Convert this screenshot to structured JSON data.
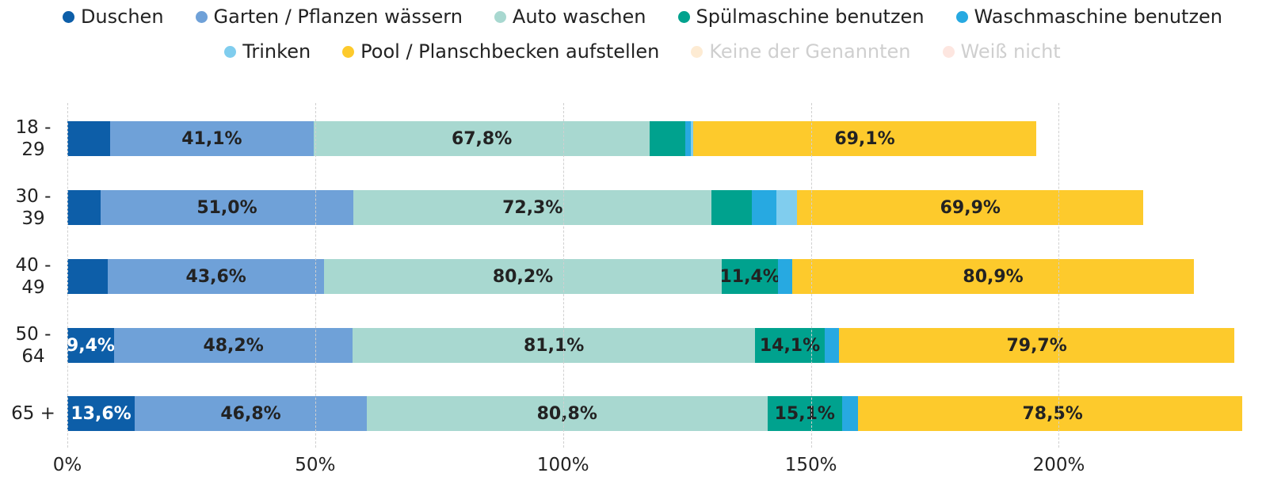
{
  "chart_data": {
    "type": "bar",
    "orientation": "horizontal",
    "stacked": true,
    "categories": [
      "18 - 29",
      "30 - 39",
      "40 - 49",
      "50 - 64",
      "65 +"
    ],
    "series": [
      {
        "name": "Duschen",
        "color": "#0d5ea8",
        "values": [
          8.6,
          6.7,
          8.2,
          9.4,
          13.6
        ],
        "value_labels": [
          null,
          null,
          null,
          "9,4%",
          "13,6%"
        ]
      },
      {
        "name": "Garten / Pflanzen wässern",
        "color": "#6fa1d8",
        "values": [
          41.1,
          51.0,
          43.6,
          48.2,
          46.8
        ],
        "value_labels": [
          "41,1%",
          "51,0%",
          "43,6%",
          "48,2%",
          "46,8%"
        ]
      },
      {
        "name": "Auto waschen",
        "color": "#a8d8d0",
        "values": [
          67.8,
          72.3,
          80.2,
          81.1,
          80.8
        ],
        "value_labels": [
          "67,8%",
          "72,3%",
          "80,2%",
          "81,1%",
          "80,8%"
        ]
      },
      {
        "name": "Spülmaschine benutzen",
        "color": "#00a28e",
        "values": [
          7.2,
          8.0,
          11.4,
          14.1,
          15.1
        ],
        "value_labels": [
          null,
          null,
          "11,4%",
          "14,1%",
          "15,1%"
        ]
      },
      {
        "name": "Waschmaschine benutzen",
        "color": "#27a9e1",
        "values": [
          1.0,
          5.0,
          2.9,
          2.9,
          3.2
        ],
        "value_labels": [
          null,
          null,
          null,
          null,
          null
        ]
      },
      {
        "name": "Trinken",
        "color": "#80cdee",
        "values": [
          0.6,
          4.2,
          null,
          null,
          null
        ],
        "value_labels": [
          null,
          null,
          null,
          null,
          null
        ]
      },
      {
        "name": "Pool / Planschbecken aufstellen",
        "color": "#fdca2c",
        "values": [
          69.1,
          69.9,
          80.9,
          79.7,
          78.5
        ],
        "value_labels": [
          "69,1%",
          "69,9%",
          "80,9%",
          "79,7%",
          "78,5%"
        ]
      },
      {
        "name": "Keine der Genannten",
        "color": "#fdebd3",
        "hidden": true,
        "values": [
          null,
          null,
          null,
          null,
          null
        ]
      },
      {
        "name": "Weiß nicht",
        "color": "#fde6e0",
        "hidden": true,
        "values": [
          null,
          null,
          null,
          null,
          null
        ]
      }
    ],
    "label_colors": {
      "Duschen": "#ffffff"
    },
    "xlim": [
      0,
      237
    ],
    "xticks": [
      {
        "value": 0,
        "label": "0%"
      },
      {
        "value": 50,
        "label": "50%"
      },
      {
        "value": 100,
        "label": "100%"
      },
      {
        "value": 150,
        "label": "150%"
      },
      {
        "value": 200,
        "label": "200%"
      }
    ],
    "grid": true,
    "legend": "top"
  }
}
